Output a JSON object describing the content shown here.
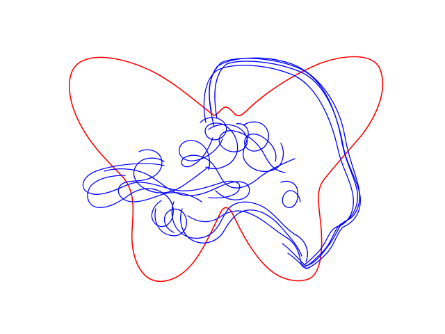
{
  "figure": {
    "background": "#ffffff",
    "curves": [
      {
        "id": "outline",
        "description_color": "#ff0000",
        "stroke_width": 1.6
      },
      {
        "id": "scribble",
        "description_color": "#0000ff",
        "stroke_width": 1.3
      }
    ]
  }
}
